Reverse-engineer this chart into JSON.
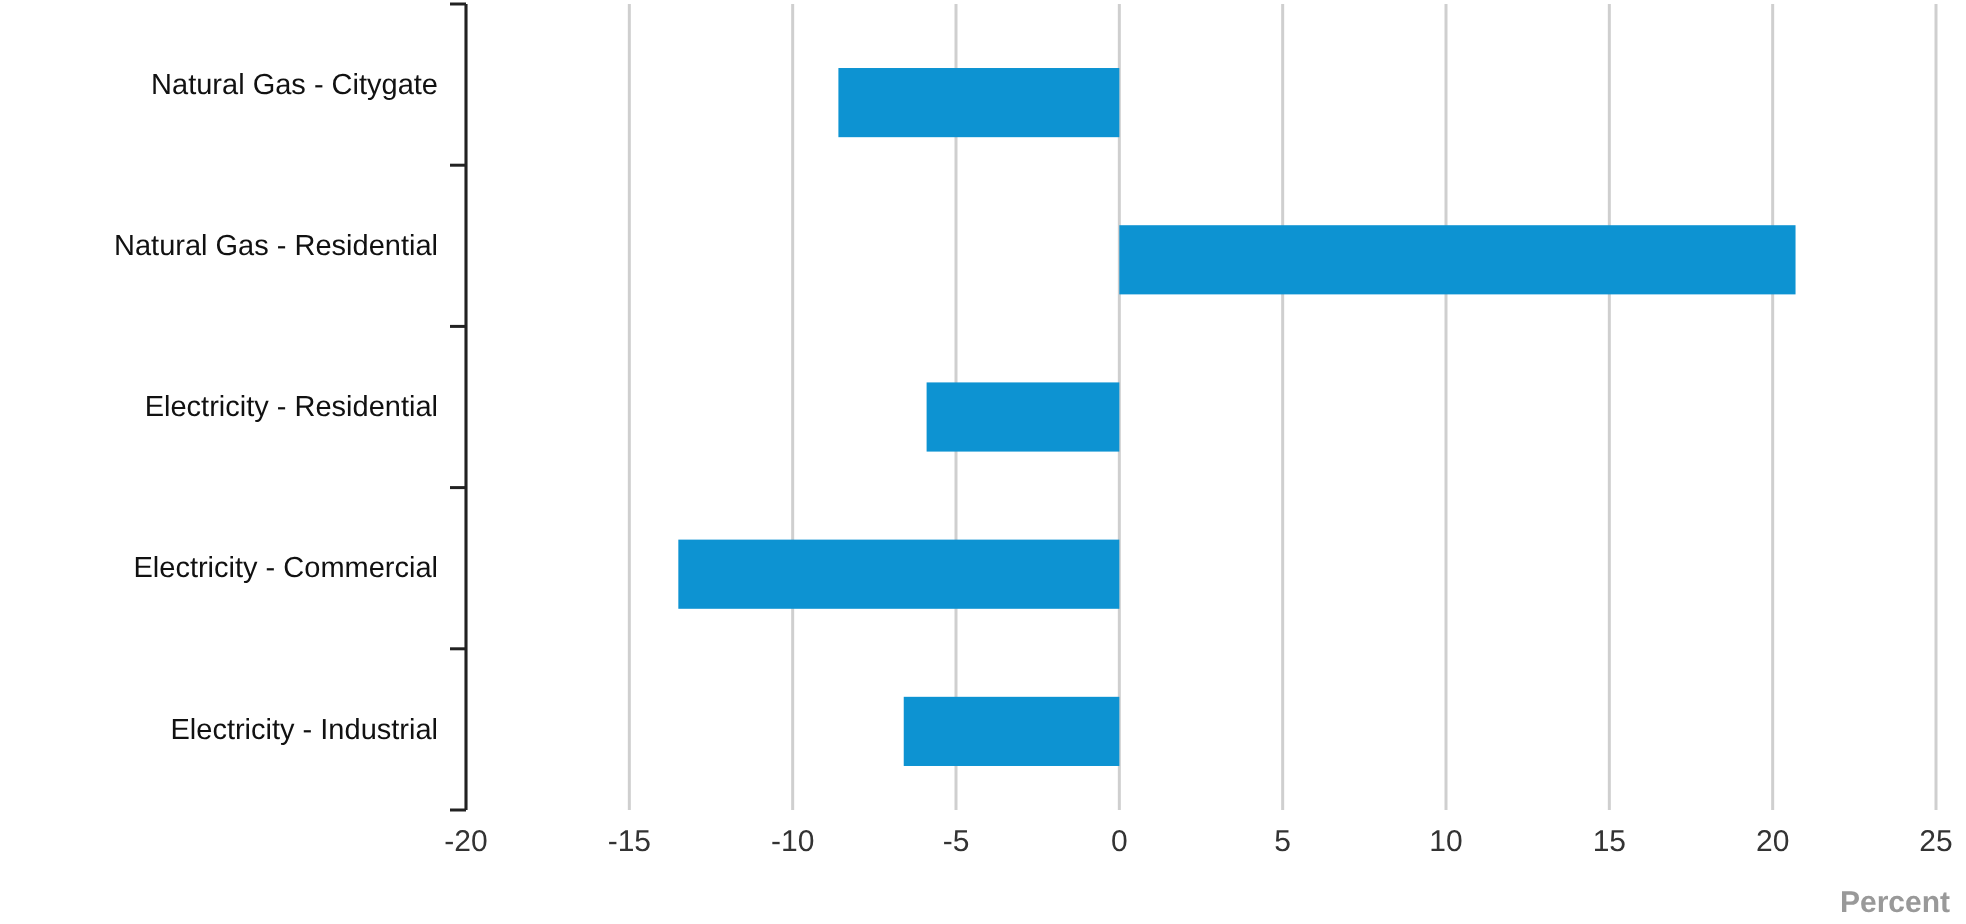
{
  "chart_data": {
    "type": "bar",
    "orientation": "horizontal",
    "xlabel": "Percent",
    "categories": [
      "Natural Gas - Citygate",
      "Natural Gas - Residential",
      "Electricity - Residential",
      "Electricity - Commercial",
      "Electricity - Industrial"
    ],
    "values": [
      -8.6,
      20.7,
      -5.9,
      -13.5,
      -6.6
    ],
    "color": "#0d93d2",
    "xlim": [
      -20,
      25
    ],
    "xticks": [
      -20,
      -15,
      -10,
      -5,
      0,
      5,
      10,
      15,
      20,
      25
    ],
    "grid": "x"
  }
}
